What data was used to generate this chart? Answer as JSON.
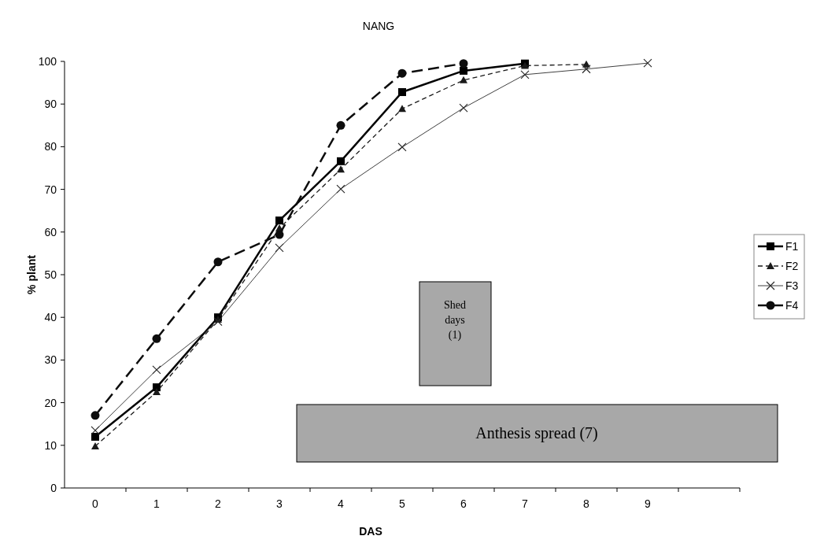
{
  "chart_data": {
    "type": "line",
    "title": "NANG",
    "xlabel": "DAS",
    "ylabel": "% plant",
    "categories": [
      "0",
      "1",
      "2",
      "3",
      "4",
      "5",
      "6",
      "7",
      "8",
      "9"
    ],
    "ylim": [
      0,
      100
    ],
    "yticks": [
      0,
      10,
      20,
      30,
      40,
      50,
      60,
      70,
      80,
      90,
      100
    ],
    "grid": false,
    "legend": "right",
    "series": [
      {
        "name": "F1",
        "color": "#000000",
        "marker": "square",
        "line_style": "solid",
        "x": [
          "0",
          "1",
          "2",
          "3",
          "4",
          "5",
          "6",
          "7"
        ],
        "values": [
          12,
          23.6,
          40,
          62.7,
          76.6,
          92.8,
          97.8,
          99.5
        ]
      },
      {
        "name": "F2",
        "color": "#1a1a1a",
        "marker": "triangle",
        "line_style": "dashed",
        "x": [
          "0",
          "1",
          "2",
          "3",
          "4",
          "5",
          "6",
          "7",
          "8"
        ],
        "values": [
          9.8,
          22.5,
          39.5,
          60.9,
          74.7,
          88.9,
          95.6,
          99,
          99.3
        ]
      },
      {
        "name": "F3",
        "color": "#2a2a2a",
        "marker": "cross",
        "line_style": "solid",
        "values": [
          13.5,
          27.7,
          39,
          56.3,
          70.1,
          79.9,
          89.1,
          96.9,
          98.2,
          99.6
        ]
      },
      {
        "name": "F4",
        "color": "#0d0d0d",
        "marker": "circle",
        "line_style": "dashed",
        "x": [
          "0",
          "1",
          "2",
          "3",
          "4",
          "5",
          "6"
        ],
        "values": [
          17,
          35,
          53,
          59.4,
          85,
          97.2,
          99.5
        ]
      }
    ],
    "annotations": [
      "Shed days (1)",
      "Anthesis spread (7)"
    ]
  }
}
